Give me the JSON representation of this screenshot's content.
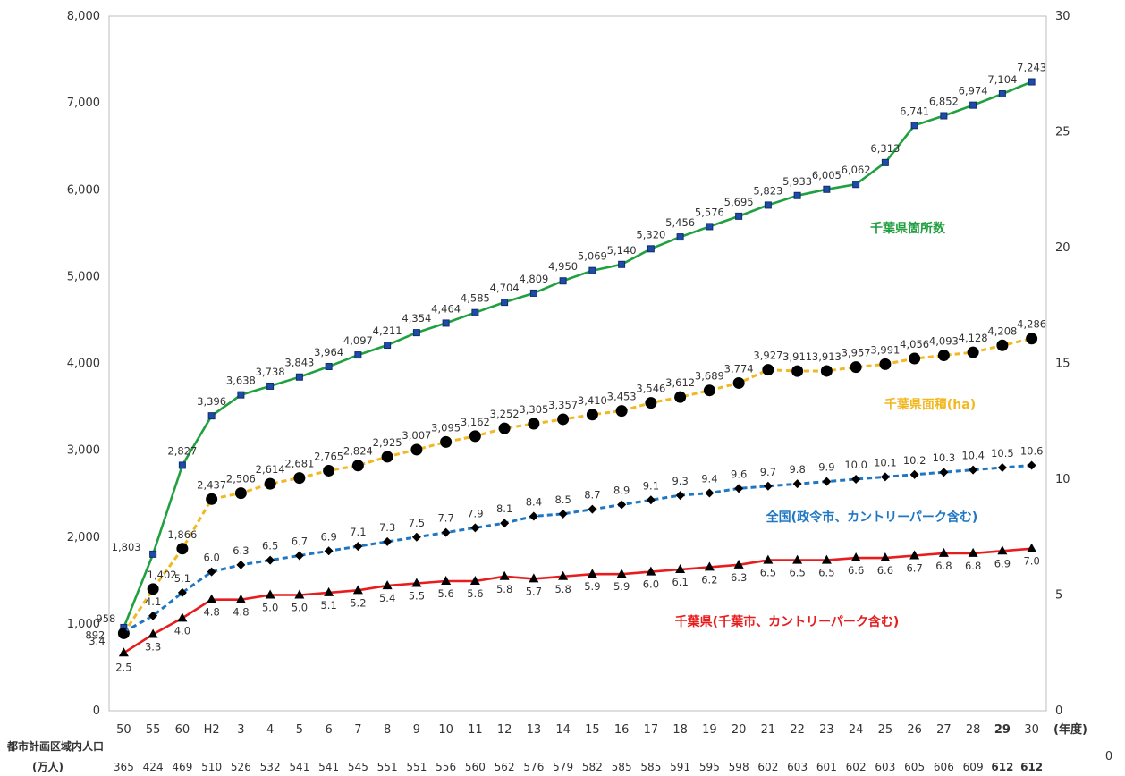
{
  "chart_data": {
    "type": "line",
    "x": [
      "50",
      "55",
      "60",
      "H2",
      "3",
      "4",
      "5",
      "6",
      "7",
      "8",
      "9",
      "10",
      "11",
      "12",
      "13",
      "14",
      "15",
      "16",
      "17",
      "18",
      "19",
      "20",
      "21",
      "22",
      "23",
      "24",
      "25",
      "26",
      "27",
      "28",
      "29",
      "30"
    ],
    "x_unit": "(年度)",
    "y_left": {
      "min": 0,
      "max": 8000,
      "ticks": [
        "0",
        "1,000",
        "2,000",
        "3,000",
        "4,000",
        "5,000",
        "6,000",
        "7,000",
        "8,000"
      ]
    },
    "y_right": {
      "min": 0,
      "max": 30,
      "ticks": [
        "0",
        "5",
        "10",
        "15",
        "20",
        "25",
        "30"
      ]
    },
    "grid": false,
    "series": [
      {
        "name": "千葉県箇所数",
        "axis": "left",
        "color": "#21a040",
        "marker": "x-square",
        "dash": "solid",
        "values": [
          958,
          1803,
          2827,
          3396,
          3638,
          3738,
          3843,
          3964,
          4097,
          4211,
          4354,
          4464,
          4585,
          4704,
          4809,
          4950,
          5069,
          5140,
          5320,
          5456,
          5576,
          5695,
          5823,
          5933,
          6005,
          6062,
          6313,
          6741,
          6852,
          6974,
          7104,
          7243
        ],
        "labels": [
          "958",
          "1,803",
          "2,827",
          "3,396",
          "3,638",
          "3,738",
          "3,843",
          "3,964",
          "4,097",
          "4,211",
          "4,354",
          "4,464",
          "4,585",
          "4,704",
          "4,809",
          "4,950",
          "5,069",
          "5,140",
          "5,320",
          "5,456",
          "5,576",
          "5,695",
          "5,823",
          "5,933",
          "6,005",
          "6,062",
          "6,313",
          "6,741",
          "6,852",
          "6,974",
          "7,104",
          "7,243"
        ]
      },
      {
        "name": "千葉県面積(ha)",
        "axis": "left",
        "color": "#f2b822",
        "marker": "circle",
        "dash": "dashed",
        "values": [
          892,
          1402,
          1866,
          2437,
          2506,
          2614,
          2681,
          2765,
          2824,
          2925,
          3007,
          3095,
          3162,
          3252,
          3305,
          3357,
          3410,
          3453,
          3546,
          3612,
          3689,
          3774,
          3927,
          3911,
          3913,
          3957,
          3991,
          4056,
          4093,
          4128,
          4208,
          4286
        ],
        "labels": [
          "892",
          "1,402",
          "1,866",
          "2,437",
          "2,506",
          "2,614",
          "2,681",
          "2,765",
          "2,824",
          "2,925",
          "3,007",
          "3,095",
          "3,162",
          "3,252",
          "3,305",
          "3,357",
          "3,410",
          "3,453",
          "3,546",
          "3,612",
          "3,689",
          "3,774",
          "3,927",
          "3,911",
          "3,913",
          "3,957",
          "3,991",
          "4,056",
          "4,093",
          "4,128",
          "4,208",
          "4,286"
        ]
      },
      {
        "name": "全国(政令市、カントリーパーク含む)",
        "axis": "right",
        "color": "#1f77c4",
        "marker": "diamond",
        "dash": "dashed",
        "values": [
          3.4,
          4.1,
          5.1,
          6.0,
          6.3,
          6.5,
          6.7,
          6.9,
          7.1,
          7.3,
          7.5,
          7.7,
          7.9,
          8.1,
          8.4,
          8.5,
          8.7,
          8.9,
          9.1,
          9.3,
          9.4,
          9.6,
          9.7,
          9.8,
          9.9,
          10.0,
          10.1,
          10.2,
          10.3,
          10.4,
          10.5,
          10.6
        ],
        "labels": [
          "3.4",
          "4.1",
          "5.1",
          "6.0",
          "6.3",
          "6.5",
          "6.7",
          "6.9",
          "7.1",
          "7.3",
          "7.5",
          "7.7",
          "7.9",
          "8.1",
          "8.4",
          "8.5",
          "8.7",
          "8.9",
          "9.1",
          "9.3",
          "9.4",
          "9.6",
          "9.7",
          "9.8",
          "9.9",
          "10.0",
          "10.1",
          "10.2",
          "10.3",
          "10.4",
          "10.5",
          "10.6"
        ]
      },
      {
        "name": "千葉県(千葉市、カントリーパーク含む)",
        "axis": "right",
        "color": "#e81c1c",
        "marker": "triangle",
        "dash": "solid",
        "values": [
          2.5,
          3.3,
          4.0,
          4.8,
          4.8,
          5.0,
          5.0,
          5.1,
          5.2,
          5.4,
          5.5,
          5.6,
          5.6,
          5.8,
          5.7,
          5.8,
          5.9,
          5.9,
          6.0,
          6.1,
          6.2,
          6.3,
          6.5,
          6.5,
          6.5,
          6.6,
          6.6,
          6.7,
          6.8,
          6.8,
          6.9,
          7.0
        ],
        "labels": [
          "2.5",
          "3.3",
          "4.0",
          "4.8",
          "4.8",
          "5.0",
          "5.0",
          "5.1",
          "5.2",
          "5.4",
          "5.5",
          "5.6",
          "5.6",
          "5.8",
          "5.7",
          "5.8",
          "5.9",
          "5.9",
          "6.0",
          "6.1",
          "6.2",
          "6.3",
          "6.5",
          "6.5",
          "6.5",
          "6.6",
          "6.6",
          "6.7",
          "6.8",
          "6.8",
          "6.9",
          "7.0"
        ]
      }
    ],
    "population_row": {
      "label_line1": "都市計画区域内人口",
      "label_line2": "(万人)",
      "values": [
        "365",
        "424",
        "469",
        "510",
        "526",
        "532",
        "541",
        "541",
        "545",
        "551",
        "551",
        "556",
        "560",
        "562",
        "576",
        "579",
        "582",
        "585",
        "585",
        "591",
        "595",
        "598",
        "602",
        "603",
        "601",
        "602",
        "603",
        "605",
        "606",
        "609",
        "612",
        "612"
      ]
    },
    "corner_label": "0"
  }
}
